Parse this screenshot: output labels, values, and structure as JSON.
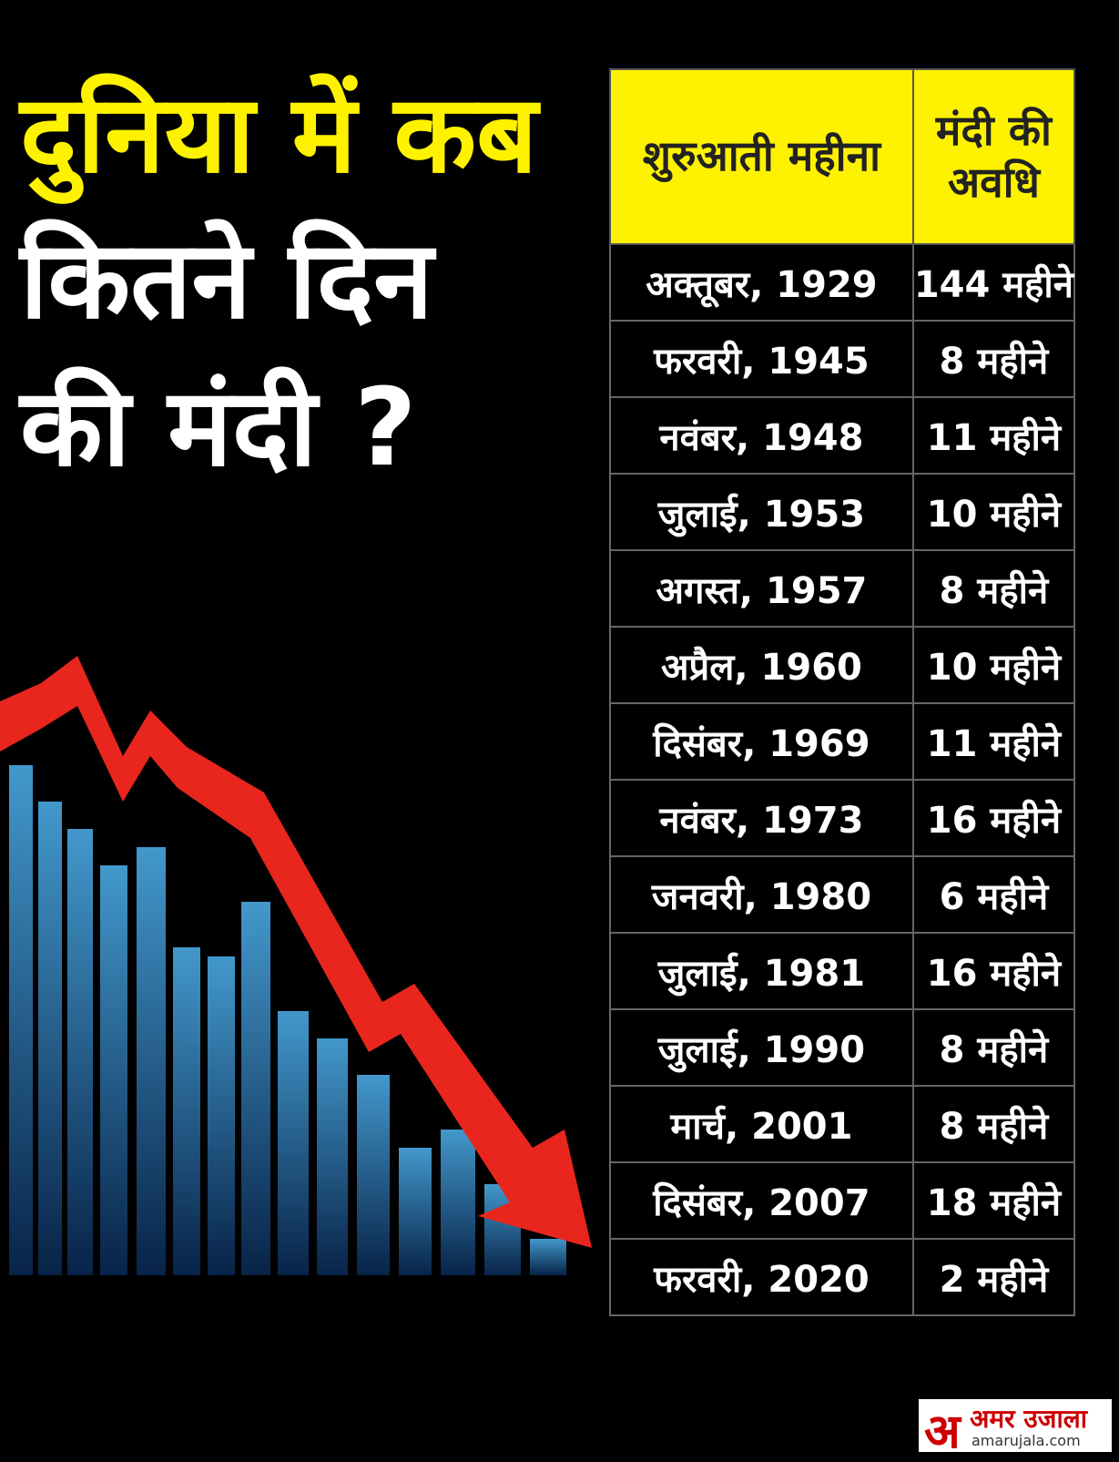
{
  "title": {
    "lines": [
      "दुनिया में कब",
      "कितने दिन",
      "की मंदी ?"
    ]
  },
  "table": {
    "header": [
      "शुरुआती महीना",
      "मंदी की अवधि"
    ],
    "rows": [
      [
        "अक्तूबर, 1929",
        "144 महीने"
      ],
      [
        "फरवरी, 1945",
        "8 महीने"
      ],
      [
        "नवंबर, 1948",
        "11 महीने"
      ],
      [
        "जुलाई, 1953",
        "10 महीने"
      ],
      [
        "अगस्त, 1957",
        "8 महीने"
      ],
      [
        "अप्रैल, 1960",
        "10 महीने"
      ],
      [
        "दिसंबर, 1969",
        "11 महीने"
      ],
      [
        "नवंबर, 1973",
        "16 महीने"
      ],
      [
        "जनवरी, 1980",
        "6 महीने"
      ],
      [
        "जुलाई, 1981",
        "16 महीने"
      ],
      [
        "जुलाई, 1990",
        "8 महीने"
      ],
      [
        "मार्च, 2001",
        "8 महीने"
      ],
      [
        "दिसंबर, 2007",
        "18 महीने"
      ],
      [
        "फरवरी, 2020",
        "2 महीने"
      ]
    ]
  },
  "logo": {
    "mark": "अ",
    "name": "अमर उजाला",
    "url": "amarujala.com"
  }
}
